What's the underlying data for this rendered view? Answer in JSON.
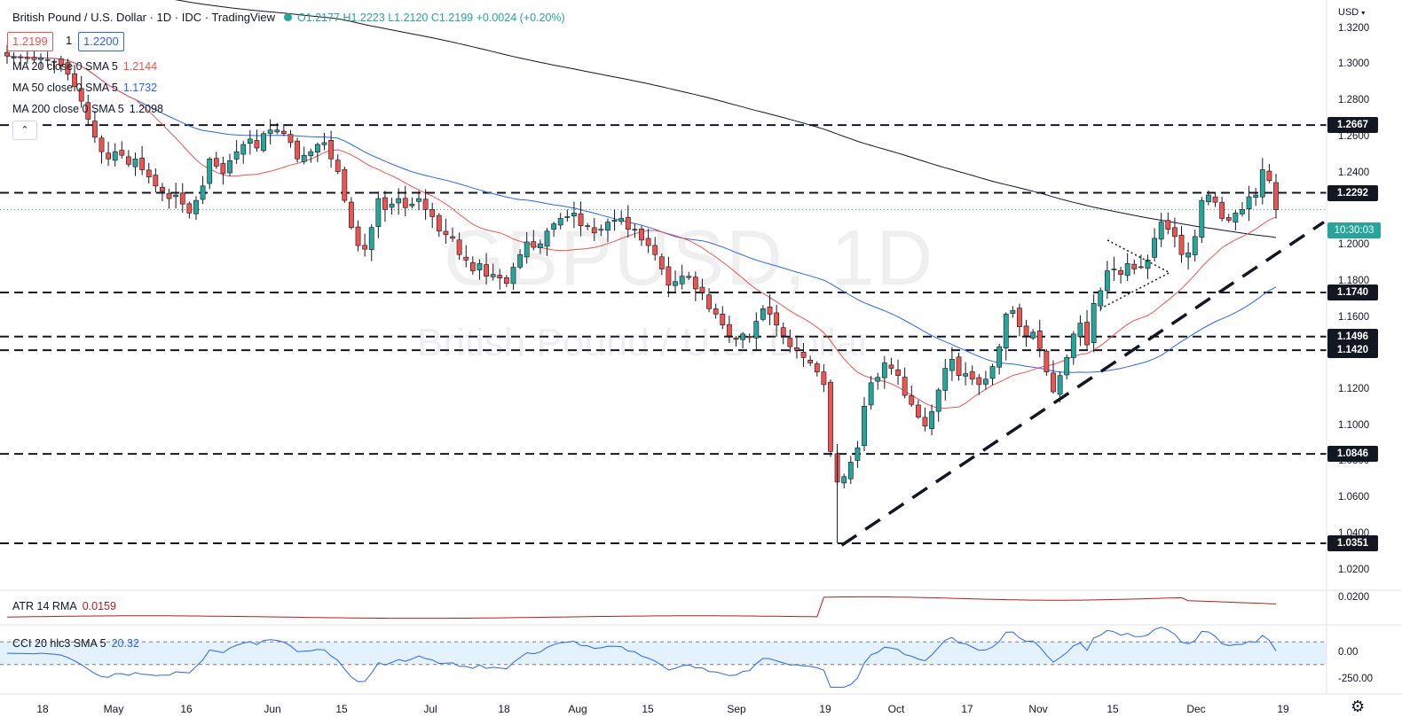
{
  "header": {
    "title": "British Pound / U.S. Dollar · 1D · IDC · TradingView",
    "open": "O1.2177",
    "high": "H1.2223",
    "low": "L1.2120",
    "close": "C1.2199",
    "change": "+0.0024 (+0.20%)",
    "bid": "1.2199",
    "quantity": "1",
    "ask": "1.2200",
    "collapse_glyph": "⌃"
  },
  "indicators": {
    "ma20": {
      "label": "MA 20 close 0 SMA 5",
      "value": "1.2144",
      "color": "#ef5350"
    },
    "ma50": {
      "label": "MA 50 close 0 SMA 5",
      "value": "1.1732",
      "color": "#2962ff"
    },
    "ma200": {
      "label": "MA 200 close 0 SMA 5",
      "value": "1.2098",
      "color": "#131722"
    },
    "atr": {
      "label": "ATR 14 RMA",
      "value": "0.0159",
      "color": "#b71c1c"
    },
    "cci": {
      "label": "CCI 20 hlc3 SMA 5",
      "value": "20.32",
      "color": "#2962ff"
    }
  },
  "watermark": {
    "symbol": "GBPUSD, 1D",
    "name": "British Pound / U.S. Dollar"
  },
  "axis": {
    "currency": "USD",
    "price_ticks": [
      "1.3200",
      "1.3000",
      "1.2800",
      "1.2600",
      "1.2400",
      "1.2000",
      "1.1800",
      "1.1600",
      "1.1200",
      "1.1000",
      "1.0800",
      "1.0600",
      "1.0400",
      "1.0200"
    ],
    "atr_ticks": [
      "0.0200"
    ],
    "cci_ticks": [
      "0.00",
      "-250.00"
    ],
    "time_labels": [
      "18",
      "May",
      "16",
      "Jun",
      "15",
      "Jul",
      "18",
      "Aug",
      "15",
      "Sep",
      "19",
      "Oct",
      "17",
      "Nov",
      "15",
      "Dec",
      "19"
    ],
    "countdown": "10:30:03",
    "levels": [
      "1.2667",
      "1.2292",
      "1.1740",
      "1.1496",
      "1.1420",
      "1.0846",
      "1.0351"
    ]
  },
  "colors": {
    "up": "#26a69a",
    "down": "#ef5350",
    "ma20": "#ef5350",
    "ma50": "#2962ff",
    "ma200": "#131722",
    "atr": "#b71c1c",
    "cci": "#2962ff",
    "cci_band": "#e3f2fd"
  },
  "icons": [
    "dot-icon",
    "collapse-icon",
    "usd-caret-icon",
    "gear-icon"
  ],
  "chart_data": {
    "type": "candlestick",
    "title": "British Pound / U.S. Dollar · 1D · IDC",
    "ylim": [
      1.012,
      1.336
    ],
    "horizontal_levels": [
      1.2667,
      1.2292,
      1.174,
      1.1496,
      1.142,
      1.0846,
      1.0351
    ],
    "trend_line": {
      "from_close": 1.034,
      "to_close": 1.213
    },
    "closes": [
      1.305,
      1.3045,
      1.304,
      1.3035,
      1.303,
      1.304,
      1.303,
      1.302,
      1.3,
      1.295,
      1.288,
      1.28,
      1.27,
      1.26,
      1.252,
      1.248,
      1.252,
      1.25,
      1.245,
      1.248,
      1.242,
      1.238,
      1.233,
      1.23,
      1.226,
      1.228,
      1.223,
      1.218,
      1.225,
      1.233,
      1.248,
      1.244,
      1.24,
      1.247,
      1.252,
      1.256,
      1.259,
      1.254,
      1.262,
      1.264,
      1.264,
      1.262,
      1.257,
      1.248,
      1.25,
      1.252,
      1.256,
      1.257,
      1.248,
      1.241,
      1.225,
      1.21,
      1.2,
      1.198,
      1.21,
      1.226,
      1.22,
      1.223,
      1.226,
      1.221,
      1.223,
      1.226,
      1.22,
      1.216,
      1.208,
      1.206,
      1.204,
      1.195,
      1.192,
      1.186,
      1.19,
      1.183,
      1.184,
      1.182,
      1.179,
      1.188,
      1.195,
      1.202,
      1.199,
      1.201,
      1.208,
      1.212,
      1.215,
      1.216,
      1.218,
      1.211,
      1.211,
      1.207,
      1.209,
      1.213,
      1.214,
      1.215,
      1.209,
      1.209,
      1.203,
      1.2,
      1.195,
      1.187,
      1.178,
      1.18,
      1.183,
      1.183,
      1.176,
      1.174,
      1.165,
      1.162,
      1.156,
      1.15,
      1.148,
      1.151,
      1.149,
      1.158,
      1.165,
      1.162,
      1.156,
      1.15,
      1.144,
      1.142,
      1.138,
      1.135,
      1.13,
      1.123,
      1.086,
      1.069,
      1.072,
      1.08,
      1.088,
      1.111,
      1.124,
      1.127,
      1.135,
      1.132,
      1.128,
      1.117,
      1.112,
      1.105,
      1.1,
      1.108,
      1.12,
      1.132,
      1.137,
      1.128,
      1.129,
      1.126,
      1.123,
      1.126,
      1.133,
      1.144,
      1.162,
      1.164,
      1.155,
      1.15,
      1.152,
      1.143,
      1.13,
      1.119,
      1.128,
      1.138,
      1.151,
      1.157,
      1.145,
      1.168,
      1.175,
      1.186,
      1.187,
      1.184,
      1.19,
      1.187,
      1.188,
      1.192,
      1.204,
      1.213,
      1.209,
      1.205,
      1.195,
      1.196,
      1.205,
      1.225,
      1.228,
      1.224,
      1.215,
      1.214,
      1.218,
      1.22,
      1.227,
      1.228,
      1.242,
      1.236,
      1.2199
    ]
  }
}
